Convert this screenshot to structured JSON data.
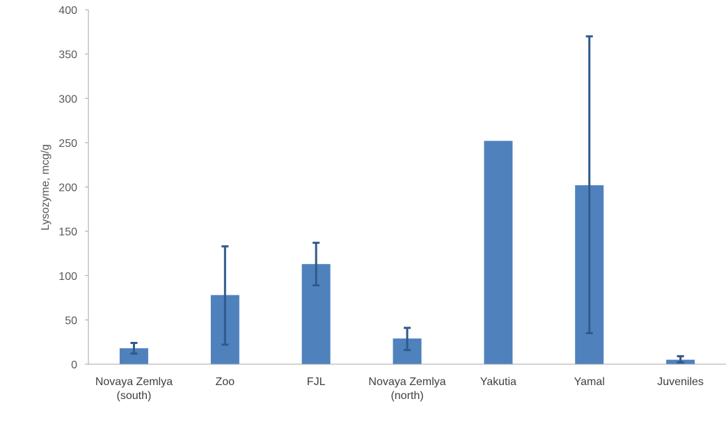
{
  "chart_data": {
    "type": "bar",
    "title": "",
    "xlabel": "",
    "ylabel": "Lysozyme, mcg/g",
    "ylim": [
      0,
      400
    ],
    "yticks": [
      0,
      50,
      100,
      150,
      200,
      250,
      300,
      350,
      400
    ],
    "grid": false,
    "legend": "none",
    "categories": [
      [
        "Novaya Zemlya",
        "(south)"
      ],
      [
        "Zoo"
      ],
      [
        "FJL"
      ],
      [
        "Novaya Zemlya",
        "(north)"
      ],
      [
        "Yakutia"
      ],
      [
        "Yamal"
      ],
      [
        "Juveniles"
      ]
    ],
    "values": [
      18,
      78,
      113,
      29,
      252,
      202,
      5
    ],
    "error_bars": [
      {
        "low": 12,
        "high": 24
      },
      {
        "low": 22,
        "high": 133
      },
      {
        "low": 89,
        "high": 137
      },
      {
        "low": 16,
        "high": 41
      },
      null,
      {
        "low": 35,
        "high": 370
      },
      {
        "low": 2,
        "high": 9
      }
    ],
    "colors": {
      "bar": "#4f81bd",
      "error_bar": "#2f5a8a",
      "axis": "#a6a6a6"
    }
  }
}
